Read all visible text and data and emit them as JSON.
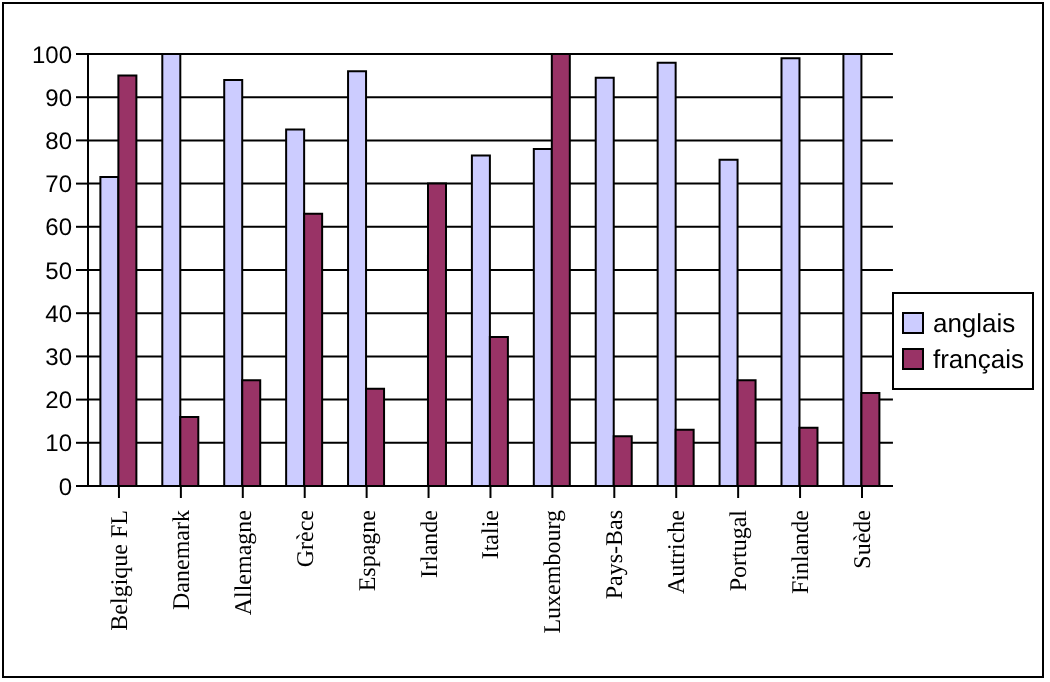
{
  "chart_data": {
    "type": "bar",
    "categories": [
      "Belgique FL",
      "Danemark",
      "Allemagne",
      "Grèce",
      "Espagne",
      "Irlande",
      "Italie",
      "Luxembourg",
      "Pays-Bas",
      "Autriche",
      "Portugal",
      "Finlande",
      "Suède"
    ],
    "series": [
      {
        "name": "anglais",
        "color": "#ccccff",
        "values": [
          71.5,
          100,
          94,
          82.5,
          96,
          null,
          76.5,
          78,
          94.5,
          98,
          75.5,
          99,
          100
        ]
      },
      {
        "name": "français",
        "color": "#993366",
        "values": [
          95,
          16,
          24.5,
          63,
          22.5,
          70,
          34.5,
          100,
          11.5,
          13,
          24.5,
          13.5,
          21.5
        ]
      }
    ],
    "ylim": [
      0,
      100
    ],
    "yticks": [
      0,
      10,
      20,
      30,
      40,
      50,
      60,
      70,
      80,
      90,
      100
    ],
    "grid": "y",
    "legend": "right"
  }
}
